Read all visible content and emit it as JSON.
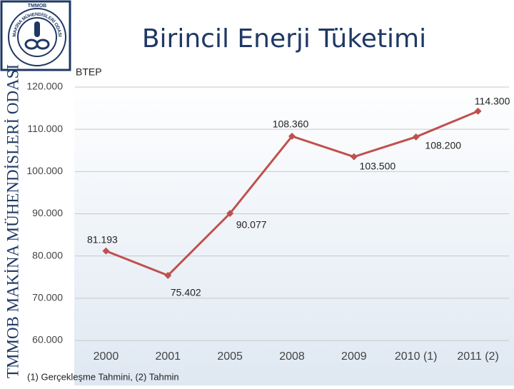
{
  "logo": {
    "top": "TMMOB",
    "ring": "MAKİNA MÜHENDİSLERİ ODASI"
  },
  "side_text": "TMMOB MAKİNA MÜHENDİSLERİ ODASI",
  "footnote": "(1) Gerçekleşme Tahmini, (2) Tahmin",
  "chart_data": {
    "type": "line",
    "title": "Birincil Enerji Tüketimi",
    "y_label": "BTEP",
    "categories": [
      "2000",
      "2001",
      "2005",
      "2008",
      "2009",
      "2010 (1)",
      "2011 (2)"
    ],
    "series": [
      {
        "name": "BTEP",
        "color": "#c0504d",
        "values": [
          81193,
          75402,
          90077,
          108360,
          103500,
          108200,
          114300
        ],
        "value_labels": [
          "81.193",
          "75.402",
          "90.077",
          "108.360",
          "103.500",
          "108.200",
          "114.300"
        ]
      }
    ],
    "ylim": [
      60000,
      120000
    ],
    "yticks": [
      {
        "value": 60000,
        "label": "60.000"
      },
      {
        "value": 70000,
        "label": "70.000"
      },
      {
        "value": 80000,
        "label": "80.000"
      },
      {
        "value": 90000,
        "label": "90.000"
      },
      {
        "value": 100000,
        "label": "100.000"
      },
      {
        "value": 110000,
        "label": "110.000"
      },
      {
        "value": 120000,
        "label": "120.000"
      }
    ],
    "grid": true
  }
}
